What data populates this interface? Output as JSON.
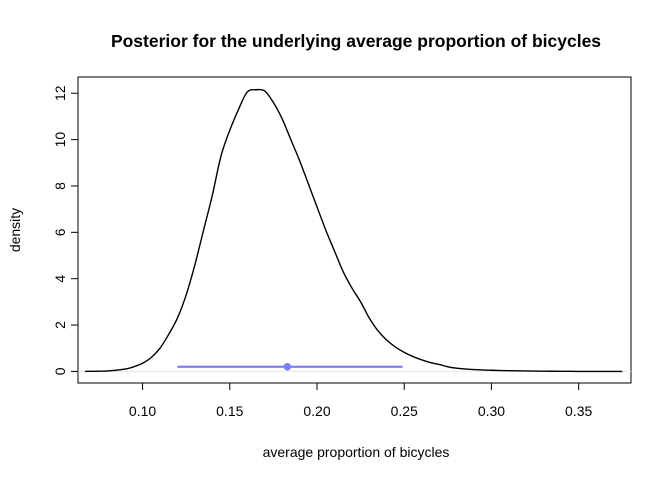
{
  "chart_data": {
    "type": "line",
    "title": "Posterior for the underlying average proportion of bicycles",
    "xlabel": "average proportion of bicycles",
    "ylabel": "density",
    "xlim": [
      0.063,
      0.38
    ],
    "ylim": [
      -0.5,
      12.7
    ],
    "x_ticks": [
      "0.10",
      "0.15",
      "0.20",
      "0.25",
      "0.30",
      "0.35"
    ],
    "x_tick_values": [
      0.1,
      0.15,
      0.2,
      0.25,
      0.3,
      0.35
    ],
    "y_ticks": [
      "0",
      "2",
      "4",
      "6",
      "8",
      "10",
      "12"
    ],
    "y_tick_values": [
      0,
      2,
      4,
      6,
      8,
      10,
      12
    ],
    "grid": false,
    "legend": "none",
    "series": [
      {
        "color": "#000000",
        "x": [
          0.067,
          0.08,
          0.09,
          0.095,
          0.1,
          0.105,
          0.11,
          0.115,
          0.12,
          0.125,
          0.13,
          0.135,
          0.14,
          0.145,
          0.15,
          0.155,
          0.16,
          0.165,
          0.17,
          0.175,
          0.18,
          0.185,
          0.19,
          0.195,
          0.2,
          0.205,
          0.21,
          0.215,
          0.22,
          0.225,
          0.23,
          0.235,
          0.24,
          0.245,
          0.25,
          0.255,
          0.26,
          0.265,
          0.27,
          0.275,
          0.28,
          0.29,
          0.3,
          0.31,
          0.32,
          0.33,
          0.34,
          0.35,
          0.36,
          0.375
        ],
        "y": [
          0.0,
          0.02,
          0.1,
          0.2,
          0.35,
          0.6,
          1.0,
          1.6,
          2.3,
          3.3,
          4.6,
          6.1,
          7.6,
          9.3,
          10.4,
          11.3,
          12.05,
          12.15,
          12.1,
          11.6,
          10.9,
          10.0,
          9.1,
          8.1,
          7.1,
          6.1,
          5.2,
          4.3,
          3.6,
          3.0,
          2.3,
          1.75,
          1.35,
          1.05,
          0.82,
          0.64,
          0.5,
          0.38,
          0.3,
          0.2,
          0.14,
          0.08,
          0.05,
          0.03,
          0.02,
          0.01,
          0.005,
          0.0,
          0.0,
          0.0
        ]
      }
    ],
    "interval": {
      "color": "#8080ff",
      "lower": 0.12,
      "upper": 0.249,
      "point": 0.183,
      "y": 0.2
    }
  }
}
